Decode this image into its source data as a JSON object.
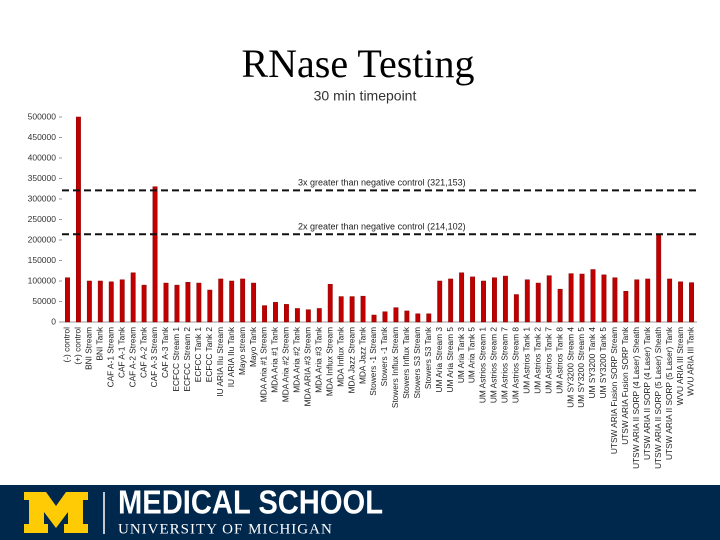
{
  "slide_title": "RNase Testing",
  "footer": {
    "school": "MEDICAL SCHOOL",
    "university": "UNIVERSITY OF MICHIGAN"
  },
  "chart_data": {
    "type": "bar",
    "title": "30 min timepoint",
    "categories": [
      "(-) control",
      "(+) control",
      "BNI Stream",
      "BNI Tank",
      "CAF A-1 Stream",
      "CAF A-1 Tank",
      "CAF A-2 Stream",
      "CAF A-2 Tank",
      "CAF A-3 Stream",
      "CAF A-3 Tank",
      "ECFCC Stream 1",
      "ECFCC Stream 2",
      "ECFCC Tank 1",
      "ECFCC Tank 2",
      "IU ARIA IIu Stream",
      "IU ARIA IIu Tank",
      "Mayo stream",
      "Mayo Tank",
      "MDA Aria #1 Stream",
      "MDA Aria #1 Tank",
      "MDA Aria #2 Stream",
      "MDA Aria #2 Tank",
      "MDA ARIA #3 Stream",
      "MDA Aria #3 Tank",
      "MDA Influx Stream",
      "MDA Influx Tank",
      "MDA Jazz Stream",
      "MDA Jazz Tank",
      "Stowers -1 Stream",
      "Stowers -1 Tank",
      "Stowers Influx Stream",
      "Stowers Influx Tank",
      "Stowers S3 Stream",
      "Stowers S3 Tank",
      "UM Aria Stream 3",
      "UM Aria Stream 5",
      "UM Aria Tank 3",
      "UM Aria Tank 5",
      "UM Astrios Stream 1",
      "UM Astrios Stream 2",
      "UM Astrios Stream 7",
      "UM Astrios Stream 8",
      "UM Astrios Tank 1",
      "UM Astrios Tank 2",
      "UM Astrios Tank 7",
      "UM Astrios Tank 8",
      "UM SY3200 Stream 4",
      "UM SY3200 Stream 5",
      "UM SY3200 Tank 4",
      "UM SY3200 Tank 5",
      "UTSW ARIA Fusion SORP Stream",
      "UTSW ARIA Fusion SORP Tank",
      "UTSW ARIA II SORP (4 Laser) Sheath",
      "UTSW ARIA II SORP (4 Laser) Tank",
      "UTSW ARIA II SORP (5 Laser) Sheath",
      "UTSW ARIA II SORP (5 Laser) Tank",
      "WVU ARIA III Stream",
      "WVU ARIA III Tank"
    ],
    "values": [
      108000,
      500000,
      100000,
      100000,
      98000,
      103000,
      120000,
      90000,
      330000,
      95000,
      90000,
      97000,
      95000,
      78000,
      105000,
      100000,
      105000,
      95000,
      40000,
      48000,
      43000,
      33000,
      30000,
      33000,
      92000,
      62000,
      62000,
      63000,
      17000,
      25000,
      35000,
      27000,
      20000,
      20000,
      100000,
      105000,
      120000,
      110000,
      100000,
      108000,
      112000,
      67000,
      103000,
      95000,
      113000,
      80000,
      118000,
      117000,
      128000,
      115000,
      108000,
      75000,
      103000,
      105000,
      214000,
      105000,
      98000,
      96000
    ],
    "color": "#c00000",
    "ylim": [
      0,
      500000
    ],
    "yticks": [
      0,
      50000,
      100000,
      150000,
      200000,
      250000,
      300000,
      350000,
      400000,
      450000,
      500000
    ],
    "grid": false,
    "reference_lines": [
      {
        "value": 321153,
        "label": "3x greater than negative control (321,153)"
      },
      {
        "value": 214102,
        "label": "2x greater than negative control (214,102)"
      }
    ]
  }
}
